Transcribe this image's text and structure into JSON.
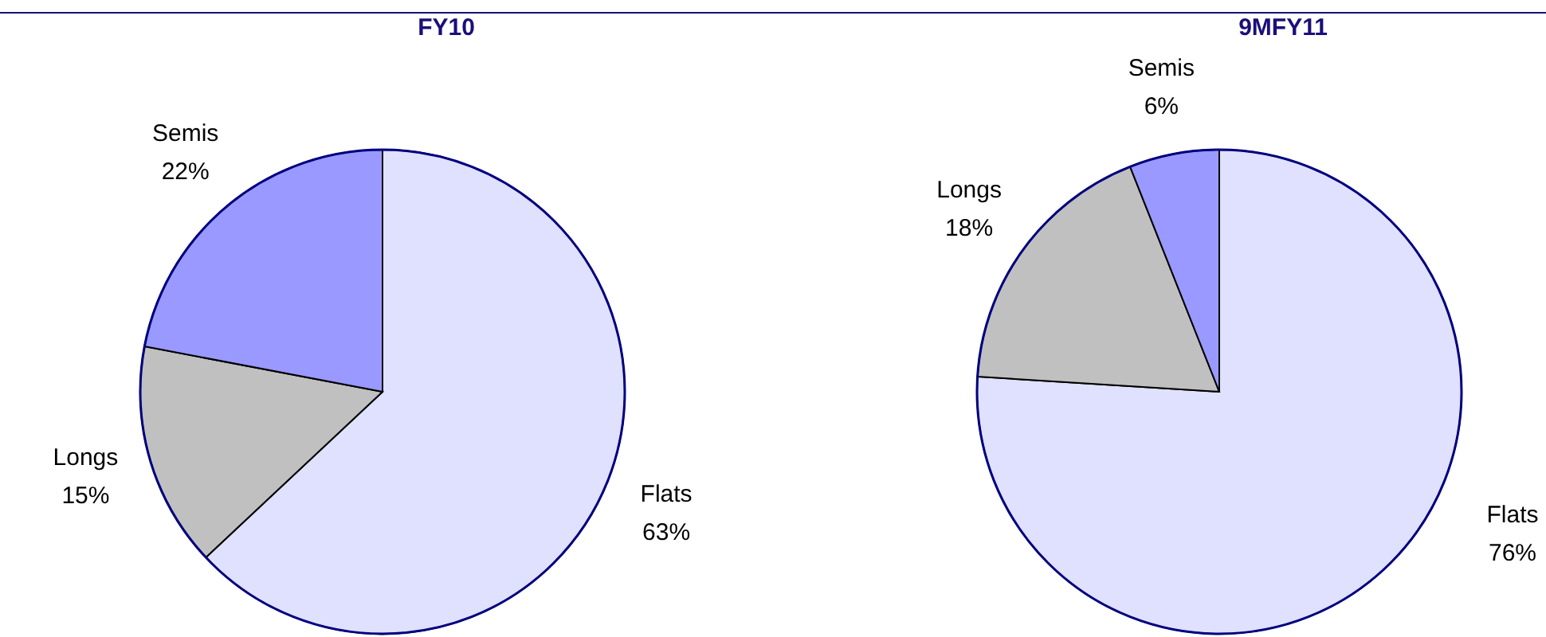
{
  "chart_data": [
    {
      "type": "pie",
      "title": "FY10",
      "categories": [
        "Flats",
        "Longs",
        "Semis"
      ],
      "values": [
        63,
        15,
        22
      ],
      "colors": [
        "#e0e0ff",
        "#c0c0c0",
        "#9999ff"
      ],
      "value_labels": [
        "63%",
        "15%",
        "22%"
      ]
    },
    {
      "type": "pie",
      "title": "9MFY11",
      "categories": [
        "Flats",
        "Longs",
        "Semis"
      ],
      "values": [
        76,
        18,
        6
      ],
      "colors": [
        "#e0e0ff",
        "#c0c0c0",
        "#9999ff"
      ],
      "value_labels": [
        "76%",
        "18%",
        "6%"
      ]
    }
  ]
}
